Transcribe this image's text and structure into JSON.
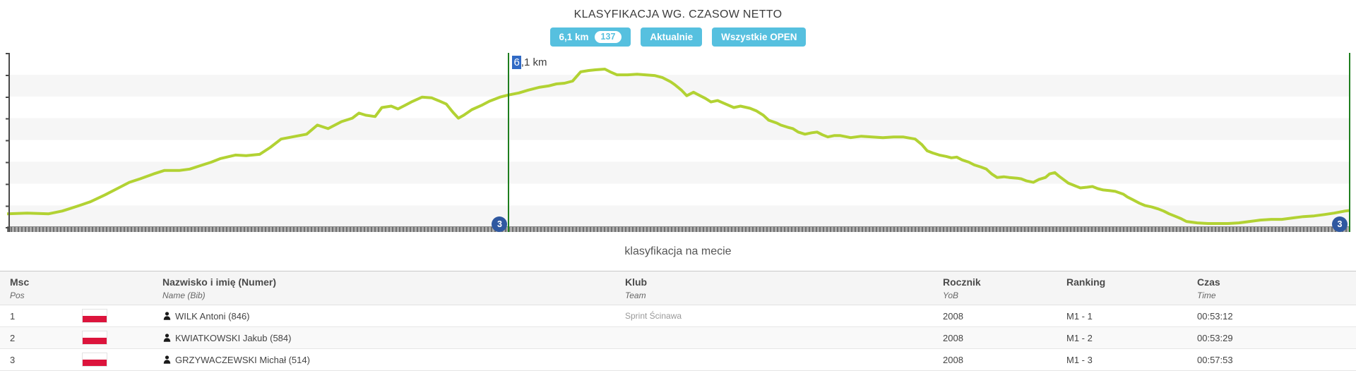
{
  "header": {
    "title": "KLASYFIKACJA WG. CZASOW NETTO",
    "accent_color": "#56c0df",
    "buttons": [
      {
        "label": "6,1 km",
        "badge": "137"
      },
      {
        "label": "Aktualnie",
        "badge": null
      },
      {
        "label": "Wszystkie OPEN",
        "badge": null
      }
    ]
  },
  "chart_data": {
    "type": "line",
    "title": "",
    "xlabel": "",
    "ylabel": "",
    "grid": "horizontal-bands",
    "legend": "none",
    "line_color": "#b2d233",
    "marker_line_color": "#1e7e1e",
    "badge_color": "#2f58a0",
    "marker": {
      "label": "6,1 km",
      "label_selected": "6",
      "label_rest": ",1 km",
      "selection_color": "#316ac5",
      "x_pct": 37.3,
      "badge": "3"
    },
    "finish": {
      "x_pct": 100,
      "badge": "3"
    },
    "series_name": "elevation-profile",
    "profile": [
      [
        0,
        6.8
      ],
      [
        1.5,
        7.2
      ],
      [
        3.1,
        6.8
      ],
      [
        4.1,
        8.4
      ],
      [
        4.6,
        9.6
      ],
      [
        5.4,
        11.6
      ],
      [
        6.2,
        13.7
      ],
      [
        7.3,
        17.7
      ],
      [
        8.3,
        21.7
      ],
      [
        9.1,
        24.9
      ],
      [
        9.9,
        26.9
      ],
      [
        10.9,
        29.7
      ],
      [
        11.7,
        31.7
      ],
      [
        12.8,
        31.7
      ],
      [
        13.6,
        32.5
      ],
      [
        14.4,
        34.5
      ],
      [
        15.2,
        36.5
      ],
      [
        15.9,
        38.6
      ],
      [
        17,
        40.6
      ],
      [
        17.8,
        40.2
      ],
      [
        18.8,
        41
      ],
      [
        19.6,
        45
      ],
      [
        20.4,
        49.8
      ],
      [
        21.5,
        51.4
      ],
      [
        22.3,
        52.6
      ],
      [
        23.1,
        57.8
      ],
      [
        23.9,
        55.8
      ],
      [
        24.9,
        59.8
      ],
      [
        25.7,
        61.8
      ],
      [
        26.2,
        64.7
      ],
      [
        26.7,
        63.5
      ],
      [
        27.4,
        62.7
      ],
      [
        27.9,
        67.9
      ],
      [
        28.6,
        68.7
      ],
      [
        29.1,
        67.1
      ],
      [
        29.6,
        69.1
      ],
      [
        30.1,
        71.1
      ],
      [
        30.9,
        73.9
      ],
      [
        31.6,
        73.5
      ],
      [
        32.1,
        71.9
      ],
      [
        32.7,
        69.9
      ],
      [
        33.2,
        65.1
      ],
      [
        33.6,
        61.8
      ],
      [
        34,
        63.5
      ],
      [
        34.6,
        66.7
      ],
      [
        35.3,
        69.1
      ],
      [
        35.9,
        71.5
      ],
      [
        36.7,
        73.9
      ],
      [
        37.3,
        75.1
      ],
      [
        38.1,
        76.3
      ],
      [
        38.8,
        77.9
      ],
      [
        39.6,
        79.5
      ],
      [
        40.3,
        80.3
      ],
      [
        40.9,
        81.5
      ],
      [
        41.5,
        81.9
      ],
      [
        42.1,
        83.1
      ],
      [
        42.7,
        88.4
      ],
      [
        43.3,
        89.2
      ],
      [
        43.8,
        89.6
      ],
      [
        44.5,
        90
      ],
      [
        44.9,
        88.4
      ],
      [
        45.4,
        86.7
      ],
      [
        46.2,
        86.7
      ],
      [
        46.9,
        87.1
      ],
      [
        47.5,
        86.7
      ],
      [
        48.2,
        86.3
      ],
      [
        48.8,
        85.1
      ],
      [
        49.4,
        82.7
      ],
      [
        49.7,
        81.1
      ],
      [
        50.2,
        77.9
      ],
      [
        50.6,
        74.7
      ],
      [
        51.1,
        76.7
      ],
      [
        51.5,
        75.1
      ],
      [
        52,
        73.1
      ],
      [
        52.4,
        71.1
      ],
      [
        52.9,
        71.9
      ],
      [
        53.5,
        69.9
      ],
      [
        54.1,
        67.9
      ],
      [
        54.6,
        68.7
      ],
      [
        55.3,
        67.5
      ],
      [
        55.8,
        65.9
      ],
      [
        56.3,
        63.5
      ],
      [
        56.7,
        60.6
      ],
      [
        57.3,
        59
      ],
      [
        57.6,
        57.8
      ],
      [
        58.1,
        56.6
      ],
      [
        58.5,
        55.8
      ],
      [
        58.9,
        53.8
      ],
      [
        59.4,
        52.6
      ],
      [
        59.9,
        53.4
      ],
      [
        60.3,
        53.8
      ],
      [
        60.7,
        52.2
      ],
      [
        61.1,
        51
      ],
      [
        61.6,
        51.8
      ],
      [
        62,
        51.8
      ],
      [
        62.8,
        50.6
      ],
      [
        63.6,
        51.4
      ],
      [
        64.4,
        51
      ],
      [
        65.2,
        50.6
      ],
      [
        66,
        51
      ],
      [
        66.7,
        51
      ],
      [
        67.6,
        49.8
      ],
      [
        68.1,
        46.6
      ],
      [
        68.5,
        43
      ],
      [
        68.9,
        41.8
      ],
      [
        69.4,
        40.6
      ],
      [
        69.9,
        39.8
      ],
      [
        70.3,
        39
      ],
      [
        70.7,
        39.4
      ],
      [
        71.1,
        37.8
      ],
      [
        71.6,
        36.5
      ],
      [
        72,
        34.9
      ],
      [
        72.5,
        33.7
      ],
      [
        72.9,
        32.5
      ],
      [
        73.3,
        29.7
      ],
      [
        73.7,
        27.7
      ],
      [
        74.2,
        28.1
      ],
      [
        74.6,
        27.7
      ],
      [
        75.2,
        27.3
      ],
      [
        75.5,
        26.9
      ],
      [
        75.9,
        25.7
      ],
      [
        76.4,
        24.9
      ],
      [
        76.8,
        26.5
      ],
      [
        77.3,
        27.7
      ],
      [
        77.6,
        29.7
      ],
      [
        78,
        30.5
      ],
      [
        78.3,
        28.5
      ],
      [
        79,
        24.5
      ],
      [
        79.5,
        22.9
      ],
      [
        79.9,
        21.7
      ],
      [
        80.4,
        22.1
      ],
      [
        80.8,
        22.5
      ],
      [
        81.2,
        21.3
      ],
      [
        81.6,
        20.5
      ],
      [
        82.1,
        20.1
      ],
      [
        82.5,
        19.7
      ],
      [
        83.1,
        18.1
      ],
      [
        83.4,
        16.5
      ],
      [
        83.8,
        14.9
      ],
      [
        84.3,
        12.9
      ],
      [
        84.7,
        11.6
      ],
      [
        85.2,
        10.8
      ],
      [
        85.7,
        9.6
      ],
      [
        86.1,
        8.4
      ],
      [
        86.5,
        6.8
      ],
      [
        86.9,
        5.6
      ],
      [
        87.4,
        4
      ],
      [
        87.8,
        2.4
      ],
      [
        88.6,
        1.6
      ],
      [
        89.4,
        1.2
      ],
      [
        90.2,
        1.2
      ],
      [
        90.9,
        1.2
      ],
      [
        91.7,
        1.6
      ],
      [
        92.5,
        2.4
      ],
      [
        93.3,
        3.2
      ],
      [
        94.1,
        3.6
      ],
      [
        94.9,
        3.6
      ],
      [
        95.7,
        4.4
      ],
      [
        96.5,
        5.2
      ],
      [
        97.3,
        5.6
      ],
      [
        98.1,
        6.4
      ],
      [
        98.8,
        7.2
      ],
      [
        99.6,
        8.4
      ],
      [
        100,
        8.8
      ]
    ]
  },
  "subtitle": "klasyfikacja na mecie",
  "table": {
    "columns": [
      {
        "label": "Msc",
        "sub": "Pos"
      },
      {
        "label": "",
        "sub": ""
      },
      {
        "label": "Nazwisko i imię (Numer)",
        "sub": "Name (Bib)"
      },
      {
        "label": "Klub",
        "sub": "Team"
      },
      {
        "label": "Rocznik",
        "sub": "YoB"
      },
      {
        "label": "Ranking",
        "sub": ""
      },
      {
        "label": "Czas",
        "sub": "Time"
      }
    ],
    "rows": [
      {
        "pos": "1",
        "flag": "poland-flag",
        "name": "WILK Antoni (846)",
        "club": "Sprint Ścinawa",
        "yob": "2008",
        "ranking": "M1 - 1",
        "time": "00:53:12"
      },
      {
        "pos": "2",
        "flag": "poland-flag",
        "name": "KWIATKOWSKI Jakub (584)",
        "club": "",
        "yob": "2008",
        "ranking": "M1 - 2",
        "time": "00:53:29"
      },
      {
        "pos": "3",
        "flag": "poland-flag",
        "name": "GRZYWACZEWSKI Michał (514)",
        "club": "",
        "yob": "2008",
        "ranking": "M1 - 3",
        "time": "00:57:53"
      }
    ],
    "flag_colors": {
      "top": "#ffffff",
      "bottom": "#dc143c"
    }
  }
}
